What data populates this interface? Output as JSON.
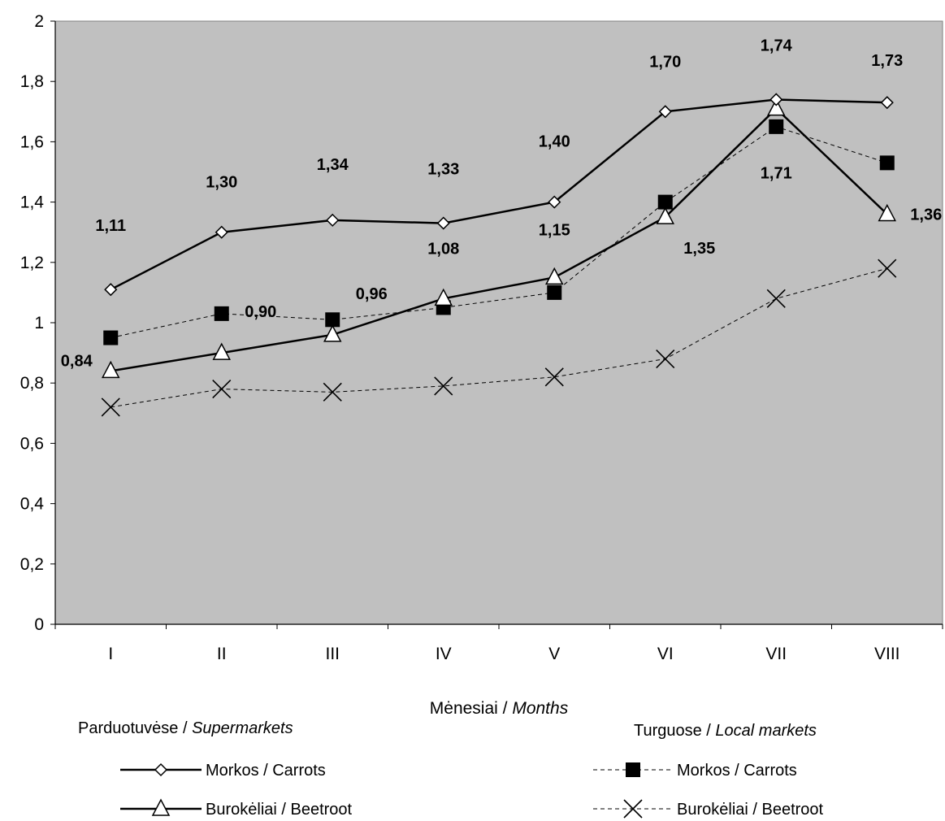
{
  "chart_data": {
    "type": "line",
    "categories": [
      "I",
      "II",
      "III",
      "IV",
      "V",
      "VI",
      "VII",
      "VIII"
    ],
    "ylim": [
      0,
      2
    ],
    "yticks": [
      "0",
      "0,2",
      "0,4",
      "0,6",
      "0,8",
      "1",
      "1,2",
      "1,4",
      "1,6",
      "1,8",
      "2"
    ],
    "ytick_values": [
      0,
      0.2,
      0.4,
      0.6,
      0.8,
      1.0,
      1.2,
      1.4,
      1.6,
      1.8,
      2.0
    ],
    "xlabel_plain": "Mėnesiai / ",
    "xlabel_italic": "Months",
    "grid": false,
    "plot_background": "#c0c0c0",
    "series": [
      {
        "group": "supermarkets",
        "name": "Morkos / Carrots",
        "marker": "diamond",
        "line": "solid",
        "values": [
          1.11,
          1.3,
          1.34,
          1.33,
          1.4,
          1.7,
          1.74,
          1.73
        ],
        "labels": [
          "1,11",
          "1,30",
          "1,34",
          "1,33",
          "1,40",
          "1,70",
          "1,74",
          "1,73"
        ]
      },
      {
        "group": "local",
        "name": "Morkos / Carrots",
        "marker": "square",
        "line": "dashed",
        "values": [
          0.95,
          1.03,
          1.01,
          1.05,
          1.1,
          1.4,
          1.65,
          1.53
        ],
        "labels": []
      },
      {
        "group": "supermarkets",
        "name": "Burokėliai / Beetroot",
        "marker": "triangle",
        "line": "solid",
        "values": [
          0.84,
          0.9,
          0.96,
          1.08,
          1.15,
          1.35,
          1.71,
          1.36
        ],
        "labels": [
          "0,84",
          "0,90",
          "0,96",
          "1,08",
          "1,15",
          "1,35",
          "1,71",
          "1,36"
        ]
      },
      {
        "group": "local",
        "name": "Burokėliai / Beetroot",
        "marker": "x",
        "line": "dashed",
        "values": [
          0.72,
          0.78,
          0.77,
          0.79,
          0.82,
          0.88,
          1.08,
          1.18
        ],
        "labels": []
      }
    ],
    "legend": {
      "placement": "bottom",
      "groups": [
        {
          "id": "supermarkets",
          "title_plain": "Parduotuvėse / ",
          "title_italic": "Supermarkets"
        },
        {
          "id": "local",
          "title_plain": "Turguose / ",
          "title_italic": "Local markets"
        }
      ]
    }
  }
}
